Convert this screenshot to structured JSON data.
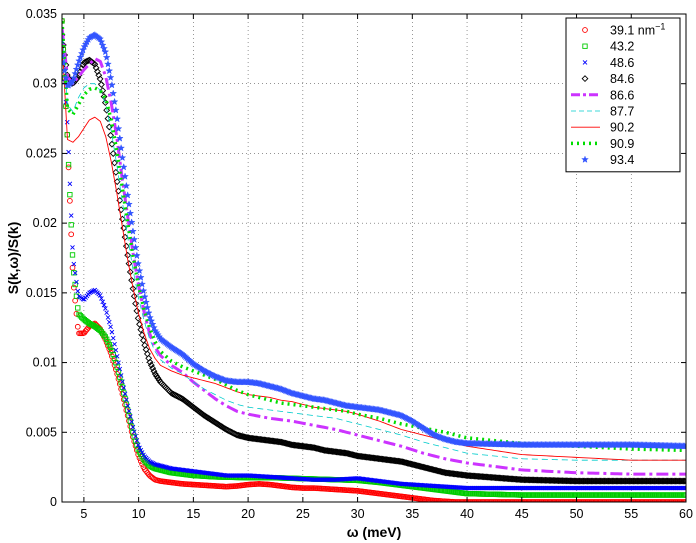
{
  "chart_data": {
    "type": "line",
    "title": "",
    "xlabel": "ω (meV)",
    "ylabel": "S(k,ω)/S(k)",
    "xlim": [
      3,
      60
    ],
    "ylim": [
      0,
      0.035
    ],
    "x_ticks": [
      5,
      10,
      15,
      20,
      25,
      30,
      35,
      40,
      45,
      50,
      55,
      60
    ],
    "x_tick_labels": [
      "5",
      "10",
      "15",
      "20",
      "25",
      "30",
      "35",
      "40",
      "45",
      "50",
      "55",
      "60"
    ],
    "y_ticks": [
      0,
      0.005,
      0.01,
      0.015,
      0.02,
      0.025,
      0.03,
      0.035
    ],
    "y_tick_labels": [
      "0",
      "0.005",
      "0.01",
      "0.015",
      "0.02",
      "0.025",
      "0.03",
      "0.035"
    ],
    "grid": "dotted",
    "legend_position": "top-right",
    "series": [
      {
        "name": "39.1 nm",
        "name_sup": "−1",
        "color": "#ff0000",
        "style": "circle-markers",
        "x": [
          3,
          3.5,
          4,
          4.5,
          5,
          5.5,
          6,
          6.5,
          7,
          7.5,
          8,
          8.5,
          9,
          9.5,
          10,
          10.5,
          11,
          11.5,
          12,
          13,
          14,
          15,
          16,
          17,
          18,
          19,
          20,
          21,
          22,
          23,
          24,
          25,
          26,
          27,
          28,
          29,
          30,
          31,
          32,
          33,
          34,
          35,
          36,
          37,
          38,
          39,
          40,
          45,
          50,
          55,
          60
        ],
        "y": [
          0.0345,
          0.026,
          0.016,
          0.0121,
          0.0121,
          0.0126,
          0.0128,
          0.0124,
          0.0116,
          0.0106,
          0.0093,
          0.0078,
          0.0062,
          0.0046,
          0.0033,
          0.0024,
          0.0019,
          0.0016,
          0.0015,
          0.0014,
          0.0013,
          0.00125,
          0.0012,
          0.00115,
          0.0011,
          0.00115,
          0.00125,
          0.0013,
          0.00125,
          0.00115,
          0.00105,
          0.001,
          0.001,
          0.00095,
          0.0009,
          0.00085,
          0.0008,
          0.0007,
          0.0006,
          0.0005,
          0.0004,
          0.0003,
          0.0002,
          0.0001,
          5e-05,
          0.0,
          0.0,
          0.0,
          0.0,
          0.0,
          0.0
        ]
      },
      {
        "name": "43.2",
        "color": "#00cc00",
        "style": "square-markers",
        "x": [
          3,
          3.5,
          4,
          4.5,
          5,
          5.5,
          6,
          6.5,
          7,
          7.5,
          8,
          8.5,
          9,
          9.5,
          10,
          10.5,
          11,
          11.5,
          12,
          13,
          14,
          15,
          16,
          17,
          18,
          19,
          20,
          22,
          24,
          26,
          28,
          30,
          32,
          34,
          36,
          38,
          40,
          45,
          50,
          55,
          60
        ],
        "y": [
          0.0345,
          0.026,
          0.017,
          0.0135,
          0.0131,
          0.0128,
          0.0126,
          0.0123,
          0.0118,
          0.011,
          0.0098,
          0.0083,
          0.0066,
          0.0049,
          0.0037,
          0.003,
          0.0026,
          0.0024,
          0.0023,
          0.0021,
          0.002,
          0.0019,
          0.00185,
          0.0018,
          0.00178,
          0.00176,
          0.00175,
          0.00175,
          0.0017,
          0.00165,
          0.0016,
          0.00155,
          0.0014,
          0.0012,
          0.001,
          0.0008,
          0.0006,
          0.0005,
          0.0005,
          0.0005,
          0.0005
        ]
      },
      {
        "name": "48.6",
        "color": "#0000ff",
        "style": "x-markers",
        "x": [
          3,
          3.5,
          4,
          4.5,
          5,
          5.5,
          6,
          6.5,
          7,
          7.5,
          8,
          8.5,
          9,
          9.5,
          10,
          10.5,
          11,
          11.5,
          12,
          13,
          14,
          15,
          16,
          17,
          18,
          19,
          20,
          22,
          24,
          26,
          28,
          30,
          32,
          34,
          36,
          38,
          40,
          45,
          50,
          55,
          60
        ],
        "y": [
          0.033,
          0.027,
          0.0175,
          0.0148,
          0.0145,
          0.015,
          0.0152,
          0.0148,
          0.0138,
          0.0124,
          0.0106,
          0.0087,
          0.0069,
          0.0053,
          0.004,
          0.0033,
          0.0029,
          0.0027,
          0.0026,
          0.0024,
          0.0023,
          0.0022,
          0.0021,
          0.002,
          0.0019,
          0.0019,
          0.0019,
          0.0018,
          0.0017,
          0.0016,
          0.0016,
          0.0017,
          0.0015,
          0.0013,
          0.0012,
          0.0011,
          0.001,
          0.001,
          0.001,
          0.001,
          0.001
        ]
      },
      {
        "name": "84.6",
        "color": "#000000",
        "style": "diamond-markers",
        "x": [
          3,
          3.5,
          4,
          4.5,
          5,
          5.5,
          6,
          6.5,
          7,
          7.5,
          8,
          8.5,
          9,
          9.5,
          10,
          10.5,
          11,
          11.5,
          12,
          13,
          14,
          15,
          16,
          17,
          18,
          19,
          20,
          21,
          22,
          23,
          24,
          25,
          26,
          27,
          28,
          29,
          30,
          32,
          34,
          36,
          38,
          40,
          45,
          50,
          55,
          60
        ],
        "y": [
          0.0335,
          0.0305,
          0.03,
          0.0305,
          0.0315,
          0.0317,
          0.0314,
          0.0303,
          0.0285,
          0.026,
          0.0232,
          0.0204,
          0.0177,
          0.0152,
          0.013,
          0.0114,
          0.0101,
          0.0092,
          0.0086,
          0.0078,
          0.0074,
          0.0068,
          0.0062,
          0.0057,
          0.0052,
          0.0048,
          0.0046,
          0.0045,
          0.0044,
          0.0043,
          0.0041,
          0.004,
          0.0039,
          0.0037,
          0.0036,
          0.0035,
          0.0033,
          0.0031,
          0.0029,
          0.0025,
          0.0021,
          0.0019,
          0.0016,
          0.0015,
          0.0015,
          0.0015
        ]
      },
      {
        "name": "86.6",
        "color": "#cc33ff",
        "style": "thick-dashdot",
        "x": [
          3,
          3.5,
          4,
          4.5,
          5,
          5.5,
          6,
          6.5,
          7,
          7.5,
          8,
          8.5,
          9,
          9.5,
          10,
          10.5,
          11,
          11.5,
          12,
          13,
          14,
          15,
          16,
          17,
          18,
          19,
          20,
          22,
          24,
          26,
          28,
          30,
          32,
          34,
          36,
          38,
          40,
          45,
          50,
          55,
          60
        ],
        "y": [
          0.034,
          0.0305,
          0.03,
          0.0305,
          0.031,
          0.0314,
          0.0318,
          0.0316,
          0.0305,
          0.0286,
          0.0262,
          0.0232,
          0.0205,
          0.0178,
          0.0155,
          0.0136,
          0.0121,
          0.0111,
          0.0105,
          0.0098,
          0.0093,
          0.0086,
          0.008,
          0.0074,
          0.0069,
          0.0065,
          0.0063,
          0.006,
          0.0058,
          0.0055,
          0.0052,
          0.0048,
          0.0044,
          0.004,
          0.0035,
          0.0031,
          0.0028,
          0.0023,
          0.0021,
          0.002,
          0.002
        ]
      },
      {
        "name": "87.7",
        "color": "#00cccc",
        "style": "thin-dashed",
        "x": [
          3,
          3.5,
          4,
          4.5,
          5,
          5.5,
          6,
          6.5,
          7,
          7.5,
          8,
          8.5,
          9,
          9.5,
          10,
          10.5,
          11,
          11.5,
          12,
          13,
          14,
          15,
          16,
          17,
          18,
          19,
          20,
          22,
          24,
          26,
          28,
          30,
          32,
          34,
          36,
          38,
          40,
          45,
          50,
          55,
          60
        ],
        "y": [
          0.034,
          0.0285,
          0.028,
          0.029,
          0.0297,
          0.03,
          0.03,
          0.0295,
          0.0285,
          0.0266,
          0.0242,
          0.0216,
          0.019,
          0.0166,
          0.0146,
          0.013,
          0.0117,
          0.0108,
          0.0102,
          0.0096,
          0.0092,
          0.0086,
          0.0081,
          0.0077,
          0.0073,
          0.007,
          0.0068,
          0.0066,
          0.0064,
          0.0062,
          0.006,
          0.0056,
          0.0052,
          0.0048,
          0.0043,
          0.0039,
          0.0035,
          0.0031,
          0.003,
          0.003,
          0.003
        ]
      },
      {
        "name": "90.2",
        "color": "#ff0000",
        "style": "thin-solid",
        "x": [
          3,
          3.5,
          4,
          4.5,
          5,
          5.5,
          6,
          6.5,
          7,
          7.5,
          8,
          8.5,
          9,
          9.5,
          10,
          10.5,
          11,
          11.5,
          12,
          13,
          14,
          15,
          16,
          17,
          18,
          19,
          20,
          21,
          22,
          23,
          24,
          25,
          26,
          27,
          28,
          29,
          30,
          32,
          34,
          36,
          38,
          40,
          45,
          50,
          55,
          60
        ],
        "y": [
          0.033,
          0.026,
          0.0258,
          0.0262,
          0.0268,
          0.0274,
          0.0276,
          0.0273,
          0.0262,
          0.0244,
          0.0222,
          0.0198,
          0.0174,
          0.0153,
          0.0135,
          0.0121,
          0.011,
          0.0103,
          0.0098,
          0.0094,
          0.0091,
          0.0089,
          0.0087,
          0.0085,
          0.0082,
          0.0079,
          0.0077,
          0.0076,
          0.0075,
          0.0073,
          0.0072,
          0.007,
          0.0068,
          0.0067,
          0.0066,
          0.0065,
          0.0063,
          0.0058,
          0.0052,
          0.0048,
          0.0044,
          0.004,
          0.0034,
          0.0032,
          0.003,
          0.003
        ]
      },
      {
        "name": "90.9",
        "color": "#00dd00",
        "style": "thick-dotted",
        "x": [
          3,
          3.5,
          4,
          4.5,
          5,
          5.5,
          6,
          6.5,
          7,
          7.5,
          8,
          8.5,
          9,
          9.5,
          10,
          10.5,
          11,
          11.5,
          12,
          13,
          14,
          15,
          16,
          17,
          18,
          19,
          20,
          21,
          22,
          23,
          24,
          25,
          26,
          27,
          28,
          29,
          30,
          32,
          34,
          36,
          38,
          40,
          45,
          50,
          55,
          60
        ],
        "y": [
          0.0345,
          0.0282,
          0.0278,
          0.0285,
          0.0292,
          0.0296,
          0.0297,
          0.0295,
          0.0289,
          0.0274,
          0.0252,
          0.0226,
          0.02,
          0.0176,
          0.0155,
          0.0138,
          0.0125,
          0.0115,
          0.0108,
          0.0101,
          0.0097,
          0.0094,
          0.0091,
          0.0088,
          0.0084,
          0.008,
          0.0077,
          0.0075,
          0.0073,
          0.0071,
          0.007,
          0.0069,
          0.0068,
          0.0067,
          0.0066,
          0.0065,
          0.0063,
          0.006,
          0.0056,
          0.0053,
          0.005,
          0.0046,
          0.0042,
          0.004,
          0.0038,
          0.0037
        ]
      },
      {
        "name": "93.4",
        "color": "#3355ff",
        "style": "star-markers",
        "x": [
          3,
          3.5,
          4,
          4.5,
          5,
          5.5,
          6,
          6.5,
          7,
          7.5,
          8,
          8.5,
          9,
          9.5,
          10,
          10.5,
          11,
          11.5,
          12,
          13,
          14,
          15,
          16,
          17,
          18,
          19,
          20,
          21,
          22,
          23,
          24,
          25,
          26,
          27,
          28,
          29,
          30,
          31,
          32,
          33,
          34,
          35,
          36,
          37,
          38,
          39,
          40,
          45,
          50,
          55,
          60
        ],
        "y": [
          0.032,
          0.0298,
          0.0302,
          0.0315,
          0.0326,
          0.0333,
          0.0335,
          0.0332,
          0.0322,
          0.0302,
          0.0277,
          0.0248,
          0.022,
          0.0193,
          0.0169,
          0.0149,
          0.0133,
          0.0123,
          0.0117,
          0.0111,
          0.0106,
          0.0099,
          0.0094,
          0.009,
          0.0087,
          0.0086,
          0.0086,
          0.0085,
          0.0083,
          0.0081,
          0.0078,
          0.0076,
          0.0074,
          0.0073,
          0.0071,
          0.0069,
          0.0068,
          0.0067,
          0.0066,
          0.0064,
          0.0062,
          0.0058,
          0.0053,
          0.0048,
          0.0045,
          0.0043,
          0.0042,
          0.0041,
          0.0041,
          0.0041,
          0.004
        ]
      }
    ]
  }
}
